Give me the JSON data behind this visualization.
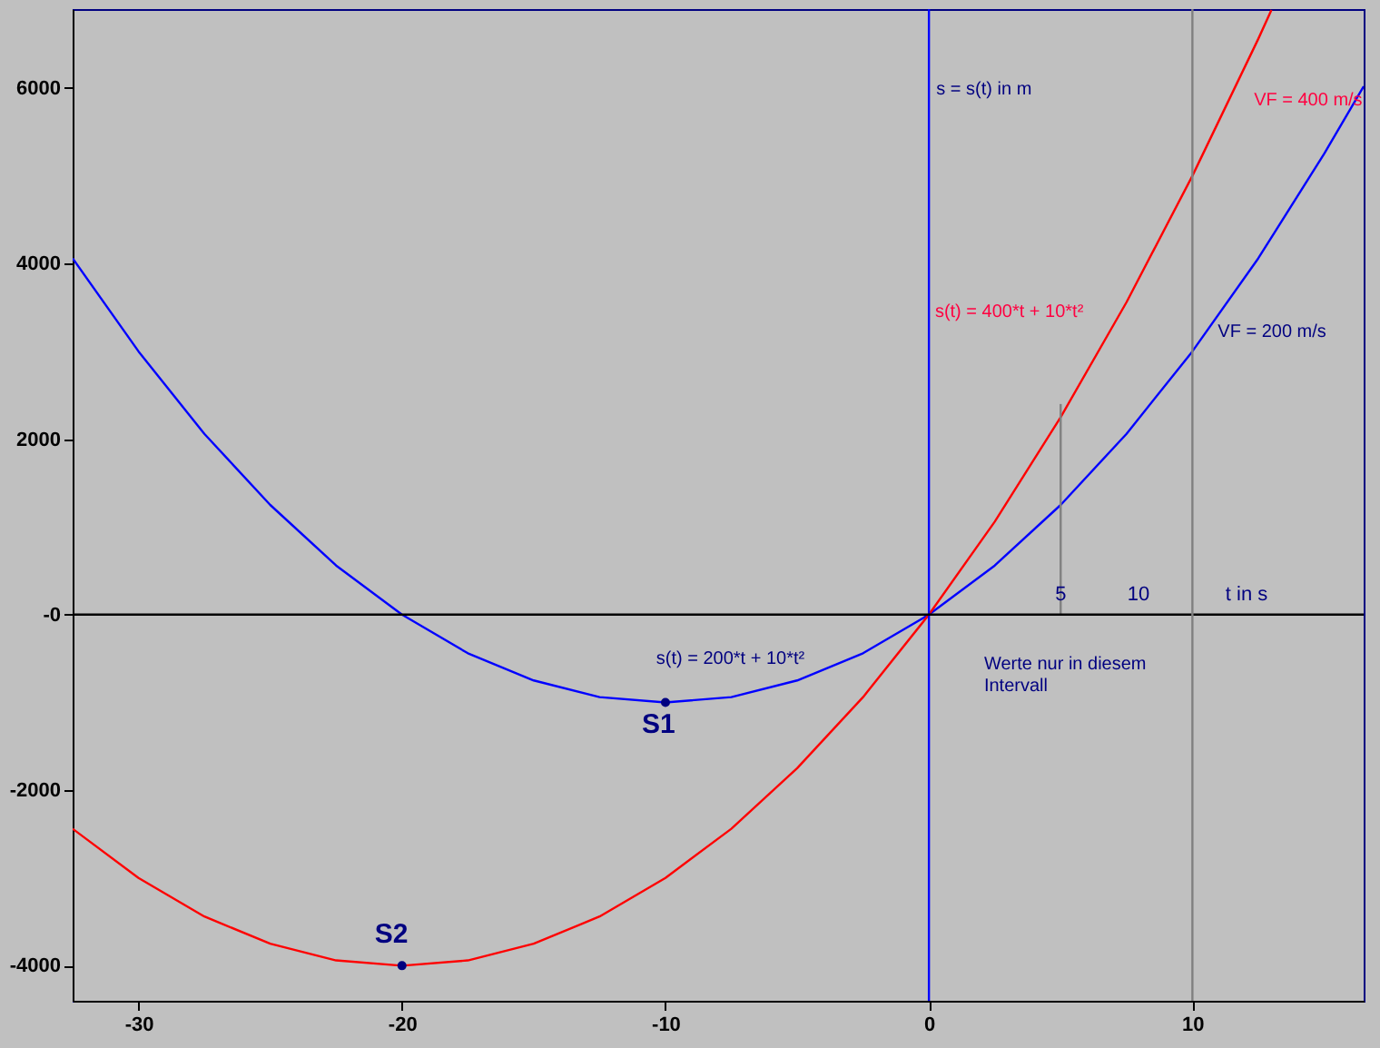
{
  "chart_data": {
    "type": "line",
    "xlabel": "t in s",
    "ylabel": "s = s(t) in m",
    "xlim": [
      -32.5,
      16.5
    ],
    "ylim": [
      -4400,
      6900
    ],
    "xticks": [
      -30,
      -20,
      -10,
      0,
      10
    ],
    "yticks": [
      {
        "value": -4000,
        "label": "-4000"
      },
      {
        "value": -2000,
        "label": "-2000"
      },
      {
        "value": 0,
        "label": "-0"
      },
      {
        "value": 2000,
        "label": "2000"
      },
      {
        "value": 4000,
        "label": "4000"
      },
      {
        "value": 6000,
        "label": "6000"
      }
    ],
    "grid": false,
    "series": [
      {
        "color": "#0000ff",
        "x": [
          -32.5,
          -30,
          -27.5,
          -25,
          -22.5,
          -20,
          -17.5,
          -15,
          -12.5,
          -10,
          -7.5,
          -5,
          -2.5,
          0,
          2.5,
          5,
          7.5,
          10,
          12.5,
          15,
          16.5
        ],
        "values": [
          4060,
          3000,
          2060,
          1250,
          560,
          0,
          -440,
          -750,
          -940,
          -1000,
          -940,
          -750,
          -440,
          0,
          560,
          1250,
          2060,
          3000,
          4060,
          5250,
          6020
        ]
      },
      {
        "color": "#ff0000",
        "x": [
          -32.5,
          -30,
          -27.5,
          -25,
          -22.5,
          -20,
          -17.5,
          -15,
          -12.5,
          -10,
          -7.5,
          -5,
          -2.5,
          0,
          2.5,
          5,
          7.5,
          10,
          12.5,
          13
        ],
        "values": [
          -2440,
          -3000,
          -3440,
          -3750,
          -3940,
          -4000,
          -3940,
          -3750,
          -3440,
          -3000,
          -2440,
          -1750,
          -940,
          0,
          1060,
          2250,
          3560,
          5000,
          6560,
          6890
        ]
      },
      {
        "type": "line",
        "color": "#808080",
        "x": [
          5,
          5
        ],
        "values": [
          0,
          2400
        ]
      },
      {
        "type": "scatter",
        "color": "#000080",
        "x": [
          -10,
          -20
        ],
        "values": [
          -1000,
          -4000
        ]
      }
    ],
    "ref_lines": [
      {
        "axis": "x",
        "value": 0,
        "color": "#0000ff"
      },
      {
        "axis": "y",
        "value": 0,
        "color": "#000000"
      },
      {
        "axis": "x",
        "value": 10,
        "color": "#808080"
      }
    ],
    "annotations": [
      "s(t) = 200*t + 10*t²",
      "s(t) = 400*t + 10*t²",
      "VF = 400 m/s",
      "VF = 200 m/s",
      "S1",
      "S2",
      "Werte nur in diesem\nIntervall",
      "5",
      "10"
    ]
  }
}
